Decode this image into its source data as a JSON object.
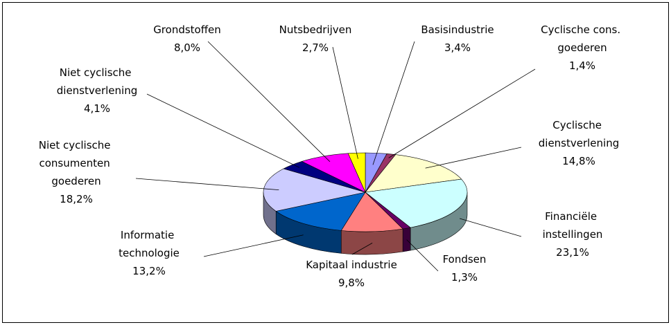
{
  "chart_data": {
    "type": "pie",
    "categories": [
      "Basisindustrie",
      "Cyclische cons. goederen",
      "Cyclische dienstverlening",
      "Financiële instellingen",
      "Fondsen",
      "Kapitaal industrie",
      "Informatie technologie",
      "Niet cyclische consumenten goederen",
      "Niet cyclische dienstverlening",
      "Grondstoffen",
      "Nutsbedrijven"
    ],
    "values": [
      3.4,
      1.4,
      14.8,
      23.1,
      1.3,
      9.8,
      13.2,
      18.2,
      4.1,
      8.0,
      2.7
    ],
    "value_labels": [
      "3,4%",
      "1,4%",
      "14,8%",
      "23,1%",
      "1,3%",
      "9,8%",
      "13,2%",
      "18,2%",
      "4,1%",
      "8,0%",
      "2,7%"
    ],
    "colors": [
      "#9999ff",
      "#993366",
      "#ffffcc",
      "#ccffff",
      "#660066",
      "#ff8080",
      "#0066cc",
      "#ccccff",
      "#000080",
      "#ff00ff",
      "#ffff00"
    ],
    "three_d": true
  }
}
